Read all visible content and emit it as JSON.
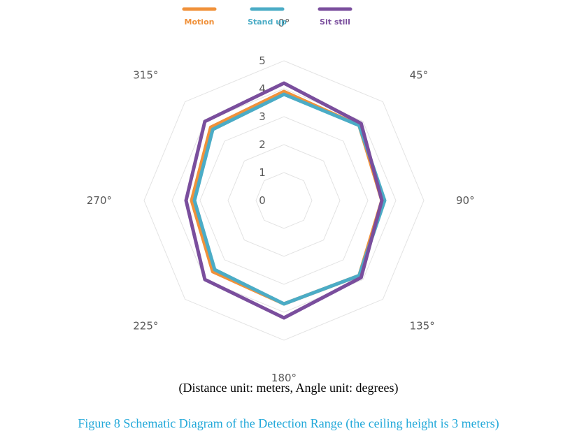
{
  "chart_data": {
    "type": "radar",
    "categories": [
      "0°",
      "45°",
      "90°",
      "135°",
      "180°",
      "225°",
      "270°",
      "315°"
    ],
    "radial_ticks": [
      "0",
      "1",
      "2",
      "3",
      "4",
      "5"
    ],
    "rlim": [
      0,
      5
    ],
    "legend_position": "top",
    "series": [
      {
        "name": "Motion",
        "color": "#f0913a",
        "values": [
          3.9,
          3.8,
          3.5,
          3.8,
          3.7,
          3.6,
          3.3,
          3.7
        ]
      },
      {
        "name": "Stand up",
        "color": "#4bacc6",
        "values": [
          3.8,
          3.8,
          3.6,
          3.8,
          3.7,
          3.5,
          3.2,
          3.6
        ]
      },
      {
        "name": "Sit still",
        "color": "#7a4e9d",
        "values": [
          4.2,
          3.9,
          3.5,
          3.9,
          4.2,
          4.0,
          3.5,
          4.0
        ]
      }
    ]
  },
  "note": "(Distance unit: meters, Angle unit: degrees)",
  "caption": "Figure 8 Schematic Diagram of the Detection Range (the ceiling height is 3 meters)"
}
